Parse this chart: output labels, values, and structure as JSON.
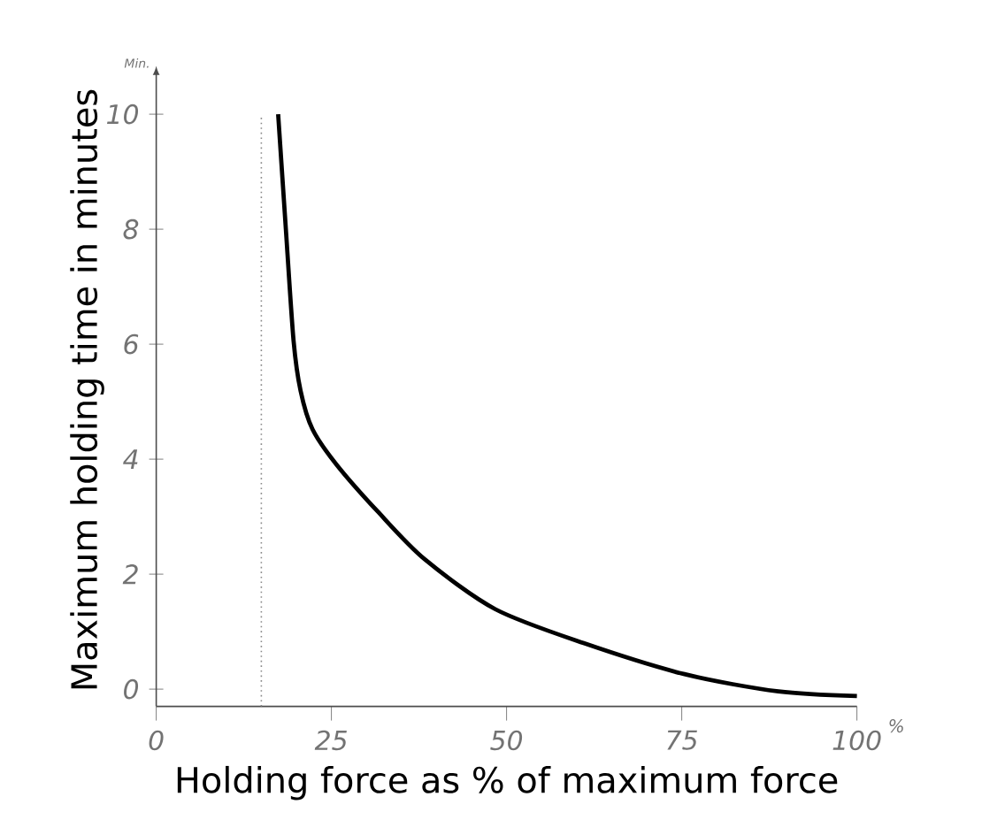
{
  "chart_data": {
    "type": "line",
    "xlabel": "Holding force as % of maximum force",
    "ylabel": "Maximum holding time in minutes",
    "annotations": [
      "Min.",
      "%"
    ],
    "x": [
      17.4,
      18.5,
      19.6,
      20.6,
      22.3,
      25.7,
      31.6,
      38.3,
      48.4,
      61,
      75.4,
      88.8,
      100
    ],
    "series": [
      {
        "color": "#000000",
        "values": [
          10,
          8.0,
          6.06,
          5.19,
          4.52,
          3.91,
          3.09,
          2.26,
          1.39,
          0.8,
          0.26,
          -0.04,
          -0.12
        ]
      }
    ],
    "xlim": [
      0,
      100
    ],
    "ylim": [
      -0.3,
      10.7
    ],
    "xticks": [
      0,
      25,
      50,
      75,
      100
    ],
    "yticks": [
      0,
      2,
      4,
      6,
      8,
      10
    ],
    "ref_lines": [
      {
        "axis": "x",
        "value": 15,
        "color": "#888888",
        "line_style": "dotted"
      }
    ],
    "marker": "none",
    "line_style": "solid"
  }
}
